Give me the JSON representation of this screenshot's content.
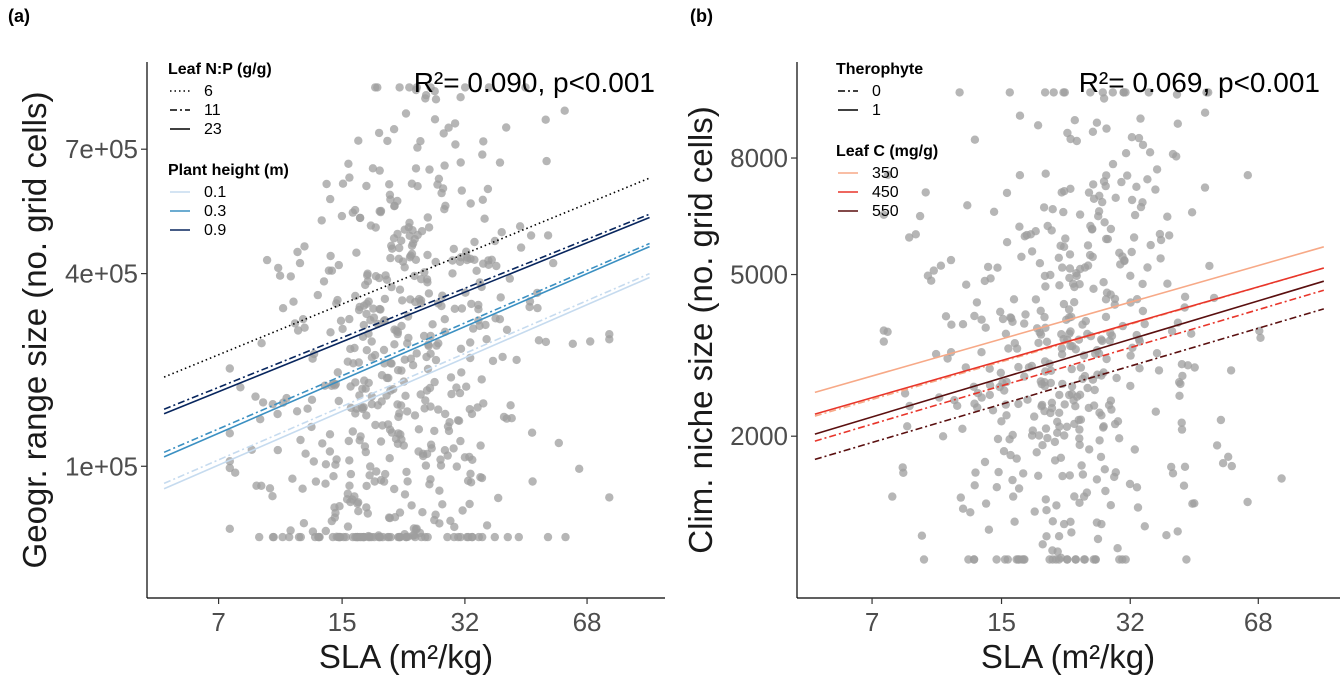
{
  "chart_data": [
    {
      "type": "scatter",
      "panel_label": "(a)",
      "xlabel": "SLA (m²/kg)",
      "ylabel": "Geogr. range size (no. grid cells)",
      "annotation": "R²= 0.090, p<0.001",
      "x_scale": "log",
      "y_scale": "sqrt",
      "x_ticks": [
        7,
        15,
        32,
        68
      ],
      "x_tick_labels": [
        "7",
        "15",
        "32",
        "68"
      ],
      "y_ticks": [
        100000,
        400000,
        700000
      ],
      "y_tick_labels": [
        "1e+05",
        "4e+05",
        "7e+05"
      ],
      "xlim": [
        4.5,
        110
      ],
      "ylim": [
        10000,
        960000
      ],
      "grid": false,
      "point_color": "#9e9e9e",
      "points": [],
      "legends": [
        {
          "title": "Leaf N:P (g/g)",
          "key": "linetype",
          "entries": [
            {
              "label": "6",
              "linetype": "dotted"
            },
            {
              "label": "11",
              "linetype": "dashdot"
            },
            {
              "label": "23",
              "linetype": "solid"
            }
          ]
        },
        {
          "title": "Plant height (m)",
          "key": "color",
          "entries": [
            {
              "label": "0.1",
              "color": "#c6dbef"
            },
            {
              "label": "0.3",
              "color": "#3b90c2"
            },
            {
              "label": "0.9",
              "color": "#08265e"
            }
          ]
        }
      ],
      "series": [
        {
          "color": "#000000",
          "linetype": "dotted",
          "x": [
            5,
            100
          ],
          "y": [
            214000,
            623000
          ]
        },
        {
          "color": "#08265e",
          "linetype": "dashdot",
          "x": [
            5,
            100
          ],
          "y": [
            168000,
            533000
          ]
        },
        {
          "color": "#08265e",
          "linetype": "solid",
          "x": [
            5,
            100
          ],
          "y": [
            162000,
            525000
          ]
        },
        {
          "color": "#3b90c2",
          "linetype": "dashdot",
          "x": [
            5,
            100
          ],
          "y": [
            115000,
            465000
          ]
        },
        {
          "color": "#3b90c2",
          "linetype": "solid",
          "x": [
            5,
            100
          ],
          "y": [
            110000,
            458000
          ]
        },
        {
          "color": "#c6dbef",
          "linetype": "dashdot",
          "x": [
            5,
            100
          ],
          "y": [
            83000,
            400000
          ]
        },
        {
          "color": "#c6dbef",
          "linetype": "solid",
          "x": [
            5,
            100
          ],
          "y": [
            78000,
            392000
          ]
        }
      ]
    },
    {
      "type": "scatter",
      "panel_label": "(b)",
      "xlabel": "SLA (m²/kg)",
      "ylabel": "Clim. niche size (no. grid cells)",
      "annotation": "R²= 0.069, p<0.001",
      "x_scale": "log",
      "y_scale": "sqrt",
      "x_ticks": [
        7,
        15,
        32,
        68
      ],
      "x_tick_labels": [
        "7",
        "15",
        "32",
        "68"
      ],
      "y_ticks": [
        2000,
        5000,
        8000
      ],
      "y_tick_labels": [
        "2000",
        "5000",
        "8000"
      ],
      "xlim": [
        4.5,
        110
      ],
      "ylim": [
        350,
        11000
      ],
      "grid": false,
      "point_color": "#9e9e9e",
      "points": [],
      "legends": [
        {
          "title": "Therophyte",
          "key": "linetype",
          "entries": [
            {
              "label": "0",
              "linetype": "dashdot"
            },
            {
              "label": "1",
              "linetype": "solid"
            }
          ]
        },
        {
          "title": "Leaf C (mg/g)",
          "key": "color",
          "entries": [
            {
              "label": "350",
              "color": "#f7a987"
            },
            {
              "label": "450",
              "color": "#e8352a"
            },
            {
              "label": "550",
              "color": "#5a0f0f"
            }
          ]
        }
      ],
      "series": [
        {
          "color": "#f7a987",
          "linetype": "solid",
          "x": [
            5,
            100
          ],
          "y": [
            2680,
            5650
          ]
        },
        {
          "color": "#f7a987",
          "linetype": "dashdot",
          "x": [
            5,
            100
          ],
          "y": [
            2300,
            5150
          ]
        },
        {
          "color": "#e8352a",
          "linetype": "solid",
          "x": [
            5,
            100
          ],
          "y": [
            2330,
            5150
          ]
        },
        {
          "color": "#e8352a",
          "linetype": "dashdot",
          "x": [
            5,
            100
          ],
          "y": [
            1930,
            4650
          ]
        },
        {
          "color": "#5a0f0f",
          "linetype": "solid",
          "x": [
            5,
            100
          ],
          "y": [
            2030,
            4850
          ]
        },
        {
          "color": "#5a0f0f",
          "linetype": "dashdot",
          "x": [
            5,
            100
          ],
          "y": [
            1680,
            4250
          ]
        }
      ]
    }
  ]
}
